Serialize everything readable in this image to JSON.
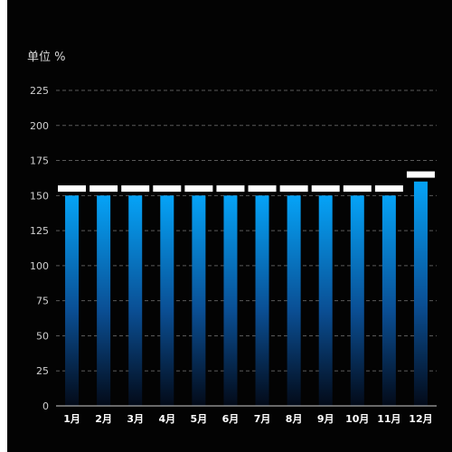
{
  "chart_data": {
    "type": "bar",
    "ylabel": "单位 %",
    "categories": [
      "1月",
      "2月",
      "3月",
      "4月",
      "5月",
      "6月",
      "7月",
      "8月",
      "9月",
      "10月",
      "11月",
      "12月"
    ],
    "values": [
      150,
      150,
      150,
      150,
      150,
      150,
      150,
      150,
      150,
      150,
      150,
      160
    ],
    "cap_values": [
      155,
      155,
      155,
      155,
      155,
      155,
      155,
      155,
      155,
      155,
      155,
      165
    ],
    "ylim": [
      0,
      225
    ],
    "yticks": [
      "0",
      "25",
      "50",
      "75",
      "100",
      "125",
      "150",
      "175",
      "200",
      "225"
    ],
    "grid": true,
    "legend": "none",
    "colors": {
      "background": "#030303",
      "bar_top": "#05a3f7",
      "bar_bottom": "#030a18",
      "cap": "#ffffff",
      "grid": "#5a5a5a",
      "axis": "#cfcfcf"
    }
  }
}
